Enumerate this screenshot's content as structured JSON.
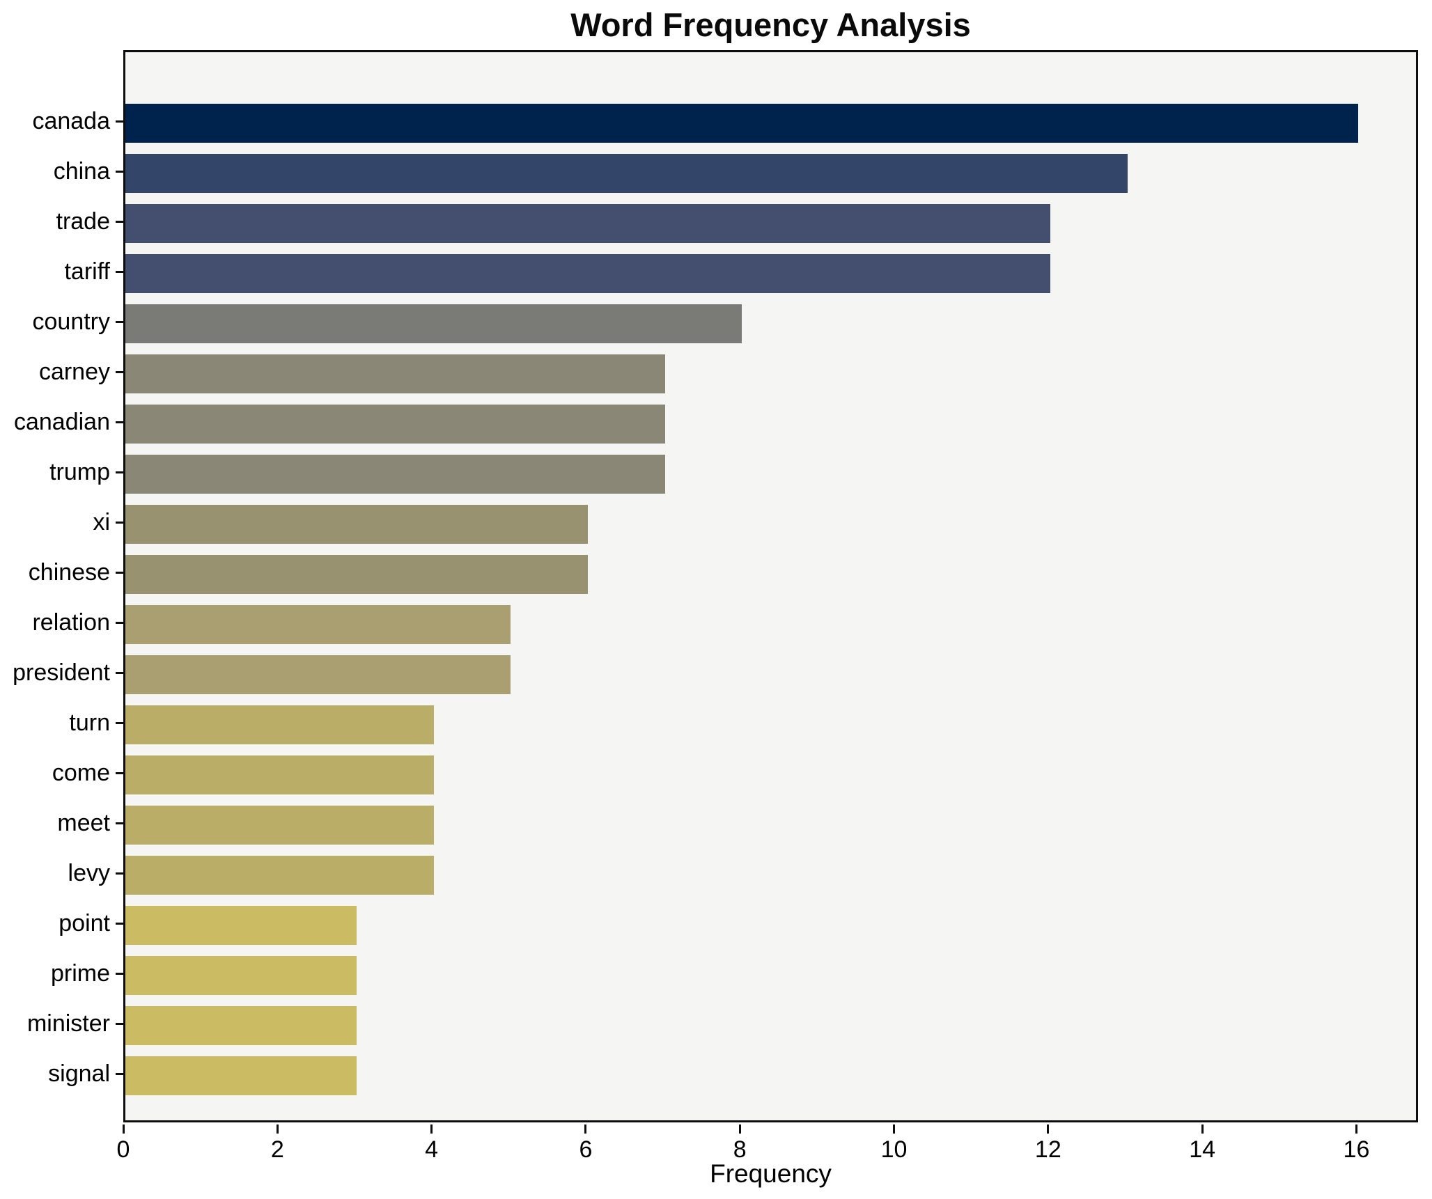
{
  "chart_data": {
    "type": "bar",
    "orientation": "horizontal",
    "title": "Word Frequency Analysis",
    "xlabel": "Frequency",
    "ylabel": "",
    "categories": [
      "canada",
      "china",
      "trade",
      "tariff",
      "country",
      "carney",
      "canadian",
      "trump",
      "xi",
      "chinese",
      "relation",
      "president",
      "turn",
      "come",
      "meet",
      "levy",
      "point",
      "prime",
      "minister",
      "signal"
    ],
    "values": [
      16,
      13,
      12,
      12,
      8,
      7,
      7,
      7,
      6,
      6,
      5,
      5,
      4,
      4,
      4,
      4,
      3,
      3,
      3,
      3
    ],
    "bar_colors": [
      "#00234d",
      "#334568",
      "#444e6e",
      "#444e6e",
      "#7a7a76",
      "#8a8777",
      "#8a8777",
      "#8a8777",
      "#999271",
      "#999271",
      "#a99f70",
      "#a99f70",
      "#b9ad68",
      "#b9ad68",
      "#b9ad68",
      "#b9ad68",
      "#cbbb62",
      "#cbbb62",
      "#cbbb62",
      "#cbbb62"
    ],
    "xlim": [
      0,
      16.8
    ],
    "xticks": [
      0,
      2,
      4,
      6,
      8,
      10,
      12,
      14,
      16
    ],
    "grid": false,
    "legend": null,
    "plot_background": "#f5f5f3",
    "figure_background": "#ffffff",
    "spine_color": "#0d0d0d",
    "text_color": "#000000",
    "colormap": "cividis-reversed-by-value"
  }
}
